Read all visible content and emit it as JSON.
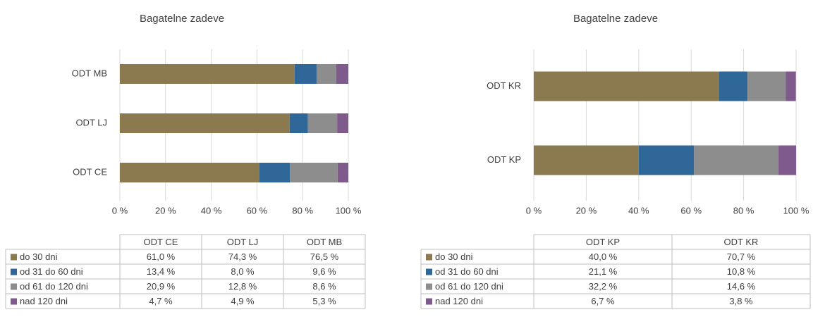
{
  "chart_data": [
    {
      "type": "bar",
      "orientation": "horizontal",
      "stacked": true,
      "title": "Bagatelne zadeve",
      "categories": [
        "ODT CE",
        "ODT LJ",
        "ODT MB"
      ],
      "series": [
        {
          "name": "do 30 dni",
          "color": "#8b7a4f",
          "values": [
            61.0,
            74.3,
            76.5
          ],
          "value_labels": [
            "61,0 %",
            "74,3 %",
            "76,5 %"
          ]
        },
        {
          "name": "od 31 do 60 dni",
          "color": "#2f6798",
          "values": [
            13.4,
            8.0,
            9.6
          ],
          "value_labels": [
            "13,4 %",
            "8,0 %",
            "9,6 %"
          ]
        },
        {
          "name": "od 61 do 120 dni",
          "color": "#8d8d8d",
          "values": [
            20.9,
            12.8,
            8.6
          ],
          "value_labels": [
            "20,9 %",
            "12,8 %",
            "8,6 %"
          ]
        },
        {
          "name": "nad 120 dni",
          "color": "#7f5a8c",
          "values": [
            4.7,
            4.9,
            5.3
          ],
          "value_labels": [
            "4,7 %",
            "4,9 %",
            "5,3 %"
          ]
        }
      ],
      "xlim": [
        0,
        100
      ],
      "xticks": [
        {
          "value": 0,
          "label": "0 %"
        },
        {
          "value": 20,
          "label": "20 %"
        },
        {
          "value": 40,
          "label": "40 %"
        },
        {
          "value": 60,
          "label": "60 %"
        },
        {
          "value": 80,
          "label": "80 %"
        },
        {
          "value": 100,
          "label": "100 %"
        }
      ],
      "grid": true
    },
    {
      "type": "bar",
      "orientation": "horizontal",
      "stacked": true,
      "title": "Bagatelne zadeve",
      "categories": [
        "ODT KP",
        "ODT KR"
      ],
      "series": [
        {
          "name": "do 30 dni",
          "color": "#8b7a4f",
          "values": [
            40.0,
            70.7
          ],
          "value_labels": [
            "40,0 %",
            "70,7 %"
          ]
        },
        {
          "name": "od 31 do 60 dni",
          "color": "#2f6798",
          "values": [
            21.1,
            10.8
          ],
          "value_labels": [
            "21,1 %",
            "10,8 %"
          ]
        },
        {
          "name": "od 61 do 120 dni",
          "color": "#8d8d8d",
          "values": [
            32.2,
            14.6
          ],
          "value_labels": [
            "32,2 %",
            "14,6 %"
          ]
        },
        {
          "name": "nad 120 dni",
          "color": "#7f5a8c",
          "values": [
            6.7,
            3.8
          ],
          "value_labels": [
            "6,7 %",
            "3,8 %"
          ]
        }
      ],
      "xlim": [
        0,
        100
      ],
      "xticks": [
        {
          "value": 0,
          "label": "0 %"
        },
        {
          "value": 20,
          "label": "20 %"
        },
        {
          "value": 40,
          "label": "40 %"
        },
        {
          "value": 60,
          "label": "60 %"
        },
        {
          "value": 80,
          "label": "80 %"
        },
        {
          "value": 100,
          "label": "100 %"
        }
      ],
      "grid": true
    }
  ]
}
